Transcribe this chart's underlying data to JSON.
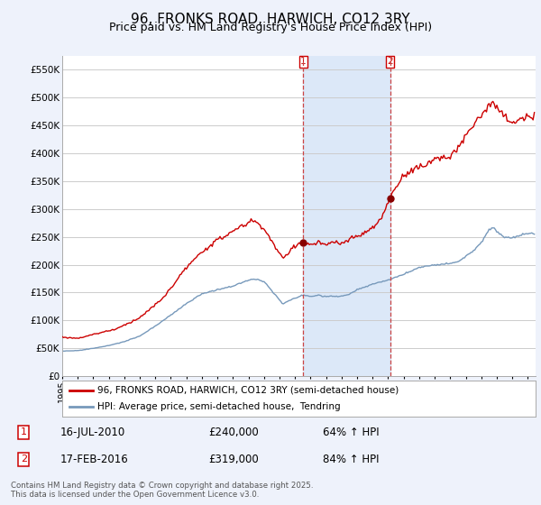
{
  "title": "96, FRONKS ROAD, HARWICH, CO12 3RY",
  "subtitle": "Price paid vs. HM Land Registry's House Price Index (HPI)",
  "title_fontsize": 11,
  "subtitle_fontsize": 9,
  "ylabel_ticks": [
    "£0",
    "£50K",
    "£100K",
    "£150K",
    "£200K",
    "£250K",
    "£300K",
    "£350K",
    "£400K",
    "£450K",
    "£500K",
    "£550K"
  ],
  "ytick_values": [
    0,
    50000,
    100000,
    150000,
    200000,
    250000,
    300000,
    350000,
    400000,
    450000,
    500000,
    550000
  ],
  "ylim": [
    0,
    575000
  ],
  "xlim_start": 1995.0,
  "xlim_end": 2025.5,
  "sale1_date_num": 2010.54,
  "sale1_price": 240000,
  "sale2_date_num": 2016.12,
  "sale2_price": 319000,
  "line1_color": "#cc0000",
  "line2_color": "#7799bb",
  "legend_label1": "96, FRONKS ROAD, HARWICH, CO12 3RY (semi-detached house)",
  "legend_label2": "HPI: Average price, semi-detached house,  Tendring",
  "footnote": "Contains HM Land Registry data © Crown copyright and database right 2025.\nThis data is licensed under the Open Government Licence v3.0.",
  "bg_color": "#eef2fb",
  "plot_bg_color": "#ffffff",
  "grid_color": "#cccccc",
  "vline_color": "#cc4444",
  "span_color": "#dce8f8",
  "marker_color": "#880000"
}
